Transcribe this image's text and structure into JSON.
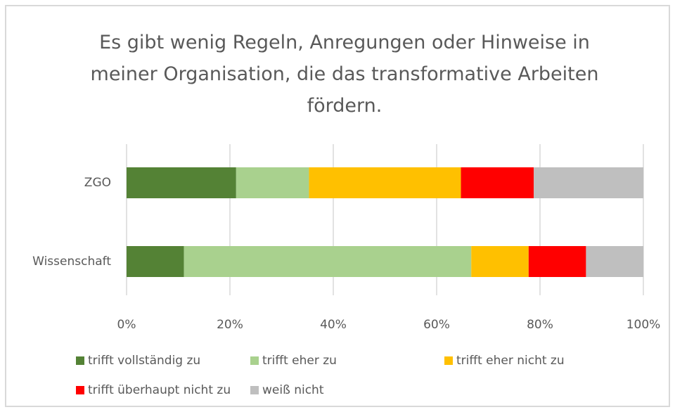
{
  "chart_data": {
    "type": "stacked-bar-horizontal",
    "title": "Es gibt wenig Regeln, Anregungen oder Hinweise in meiner Organisation, die das transformative Arbeiten fördern.",
    "categories": [
      "ZGO",
      "Wissenschaft"
    ],
    "series": [
      {
        "name": "trifft vollständig zu",
        "color": "#548235",
        "values": [
          21.2,
          11.1
        ]
      },
      {
        "name": "trifft eher zu",
        "color": "#a9d18e",
        "values": [
          14.1,
          55.6
        ]
      },
      {
        "name": "trifft eher nicht zu",
        "color": "#ffc000",
        "values": [
          29.4,
          11.1
        ]
      },
      {
        "name": "trifft überhaupt nicht zu",
        "color": "#ff0000",
        "values": [
          14.1,
          11.1
        ]
      },
      {
        "name": "weiß nicht",
        "color": "#bfbfbf",
        "values": [
          21.2,
          11.1
        ]
      }
    ],
    "xlim": [
      0,
      100
    ],
    "xticks": [
      {
        "value": 0,
        "label": "0%"
      },
      {
        "value": 20,
        "label": "20%"
      },
      {
        "value": 40,
        "label": "40%"
      },
      {
        "value": 60,
        "label": "60%"
      },
      {
        "value": 80,
        "label": "80%"
      },
      {
        "value": 100,
        "label": "100%"
      }
    ],
    "grid": true,
    "legend": "bottom"
  }
}
